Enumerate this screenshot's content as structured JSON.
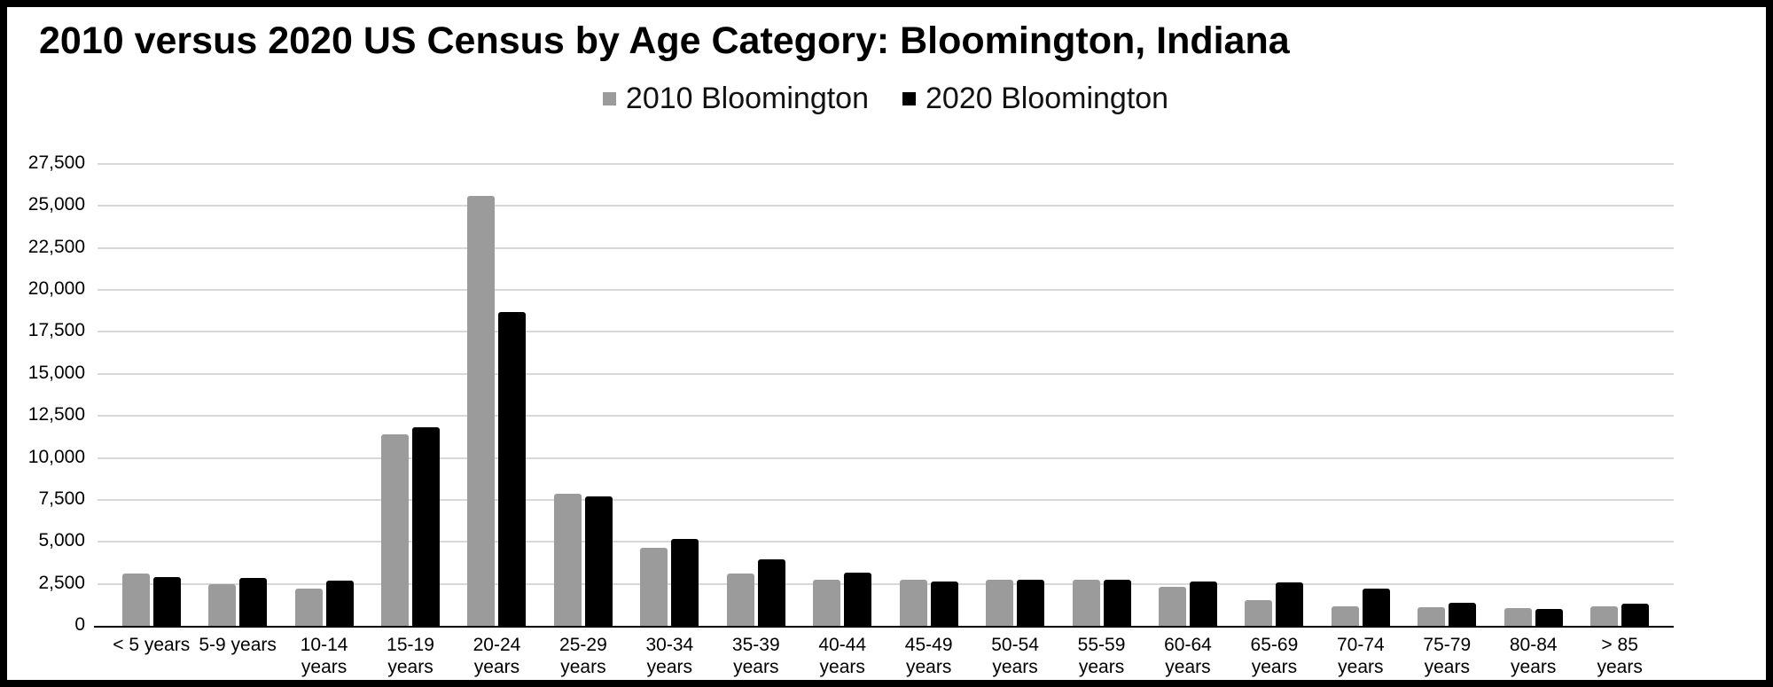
{
  "frame": {
    "border_color": "#000000",
    "background": "#ffffff"
  },
  "chart_data": {
    "type": "bar",
    "title": "2010 versus 2020 US Census by Age Category: Bloomington, Indiana",
    "xlabel": "",
    "ylabel": "",
    "categories": [
      "< 5 years",
      "5-9 years",
      "10-14 years",
      "15-19 years",
      "20-24 years",
      "25-29 years",
      "30-34 years",
      "35-39 years",
      "40-44 years",
      "45-49 years",
      "50-54 years",
      "55-59 years",
      "60-64 years",
      "65-69 years",
      "70-74 years",
      "75-79 years",
      "80-84 years",
      "> 85 years"
    ],
    "xlabels_display": [
      "< 5 years",
      "5-9 years",
      "10-14\nyears",
      "15-19\nyears",
      "20-24\nyears",
      "25-29\nyears",
      "30-34\nyears",
      "35-39\nyears",
      "40-44\nyears",
      "45-49\nyears",
      "50-54\nyears",
      "55-59\nyears",
      "60-64\nyears",
      "65-69\nyears",
      "70-74\nyears",
      "75-79\nyears",
      "80-84\nyears",
      "> 85\nyears"
    ],
    "series": [
      {
        "name": "2010 Bloomington",
        "color": "#9b9b9b",
        "values": [
          3100,
          2500,
          2200,
          11400,
          25600,
          7850,
          4650,
          3100,
          2750,
          2750,
          2750,
          2750,
          2300,
          1550,
          1150,
          1100,
          1050,
          1150
        ]
      },
      {
        "name": "2020 Bloomington",
        "color": "#000000",
        "values": [
          2900,
          2850,
          2700,
          11800,
          18700,
          7700,
          5150,
          3950,
          3150,
          2650,
          2750,
          2750,
          2650,
          2600,
          2200,
          1400,
          1000,
          1300
        ]
      }
    ],
    "ylim": [
      0,
      27500
    ],
    "ytick_step": 2500,
    "ytick_labels": [
      "0",
      "2,500",
      "5,000",
      "7,500",
      "10,000",
      "12,500",
      "15,000",
      "17,500",
      "20,000",
      "22,500",
      "25,000",
      "27,500"
    ],
    "grid": "horizontal",
    "gridline_color": "#d8d8d8",
    "axis_color": "#000000",
    "legend_position": "top-center"
  }
}
